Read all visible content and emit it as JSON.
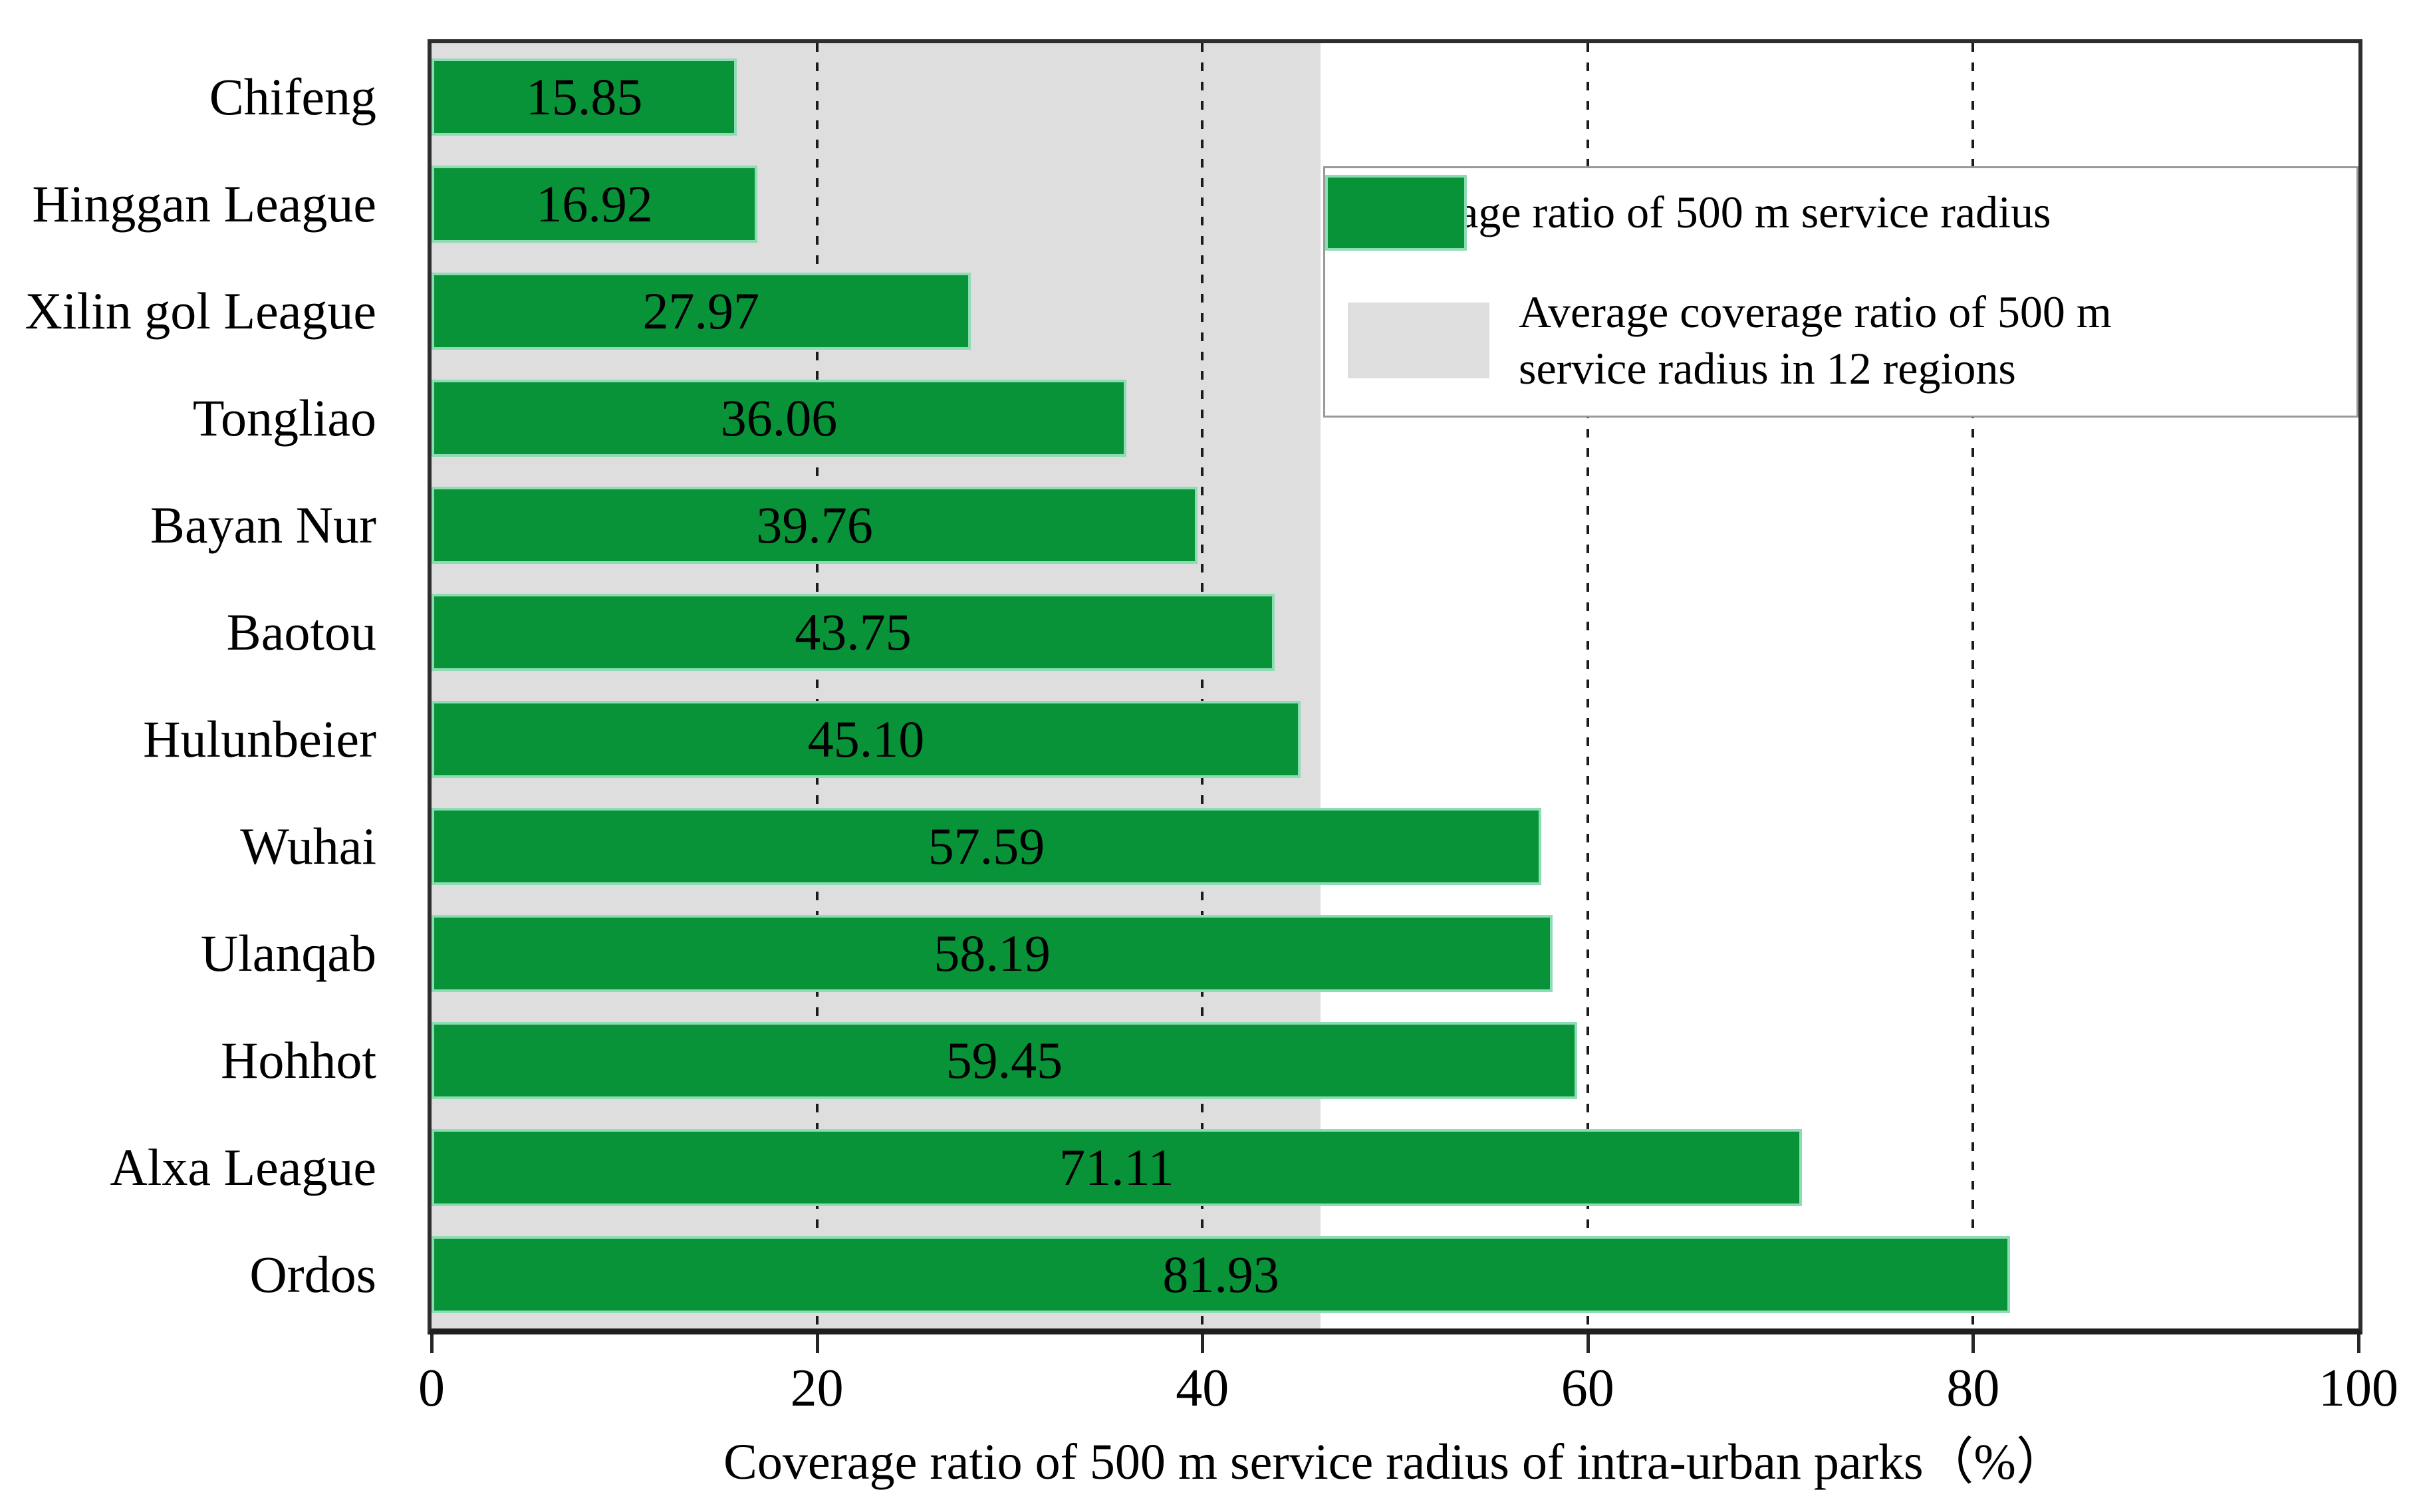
{
  "chart_data": {
    "type": "bar",
    "orientation": "horizontal",
    "title": "",
    "xlabel": "Coverage ratio of 500 m service radius of intra-urban parks（%）",
    "ylabel": "",
    "xlim": [
      0,
      100
    ],
    "xticks": [
      0,
      20,
      40,
      60,
      80,
      100
    ],
    "gridlines": [
      20,
      40,
      60,
      80
    ],
    "grid_style": "dotted-vertical",
    "categories": [
      "Chifeng",
      "Hinggan League",
      "Xilin gol League",
      "Tongliao",
      "Bayan Nur",
      "Baotou",
      "Hulunbeier",
      "Wuhai",
      "Ulanqab",
      "Hohhot",
      "Alxa League",
      "Ordos"
    ],
    "values": [
      15.85,
      16.92,
      27.97,
      36.06,
      39.76,
      43.75,
      45.1,
      57.59,
      58.19,
      59.45,
      71.11,
      81.93
    ],
    "value_labels": [
      "15.85",
      "16.92",
      "27.97",
      "36.06",
      "39.76",
      "43.75",
      "45.10",
      "57.59",
      "58.19",
      "59.45",
      "71.11",
      "81.93"
    ],
    "average_band": {
      "value": 46.14,
      "description": "Gray background band from 0 to the 12-region average coverage ratio"
    },
    "legend": {
      "position": "top-right",
      "entries": [
        {
          "kind": "bar",
          "label": "Coverage ratio of 500 m service radius",
          "lines": [
            "Coverage ratio of 500 m service radius"
          ]
        },
        {
          "kind": "band",
          "label": "Average coverage ratio of 500 m service radius in 12 regions",
          "lines": [
            "Average coverage ratio of 500 m",
            "service radius in 12 regions"
          ]
        }
      ]
    },
    "colors": {
      "bar": "#089338",
      "bar_edge": "#8edcb4",
      "band": "#dedede",
      "frame": "#2e2e2e",
      "grid": "#1b1b1b",
      "legend_border": "#999999",
      "text": "#000000"
    }
  }
}
